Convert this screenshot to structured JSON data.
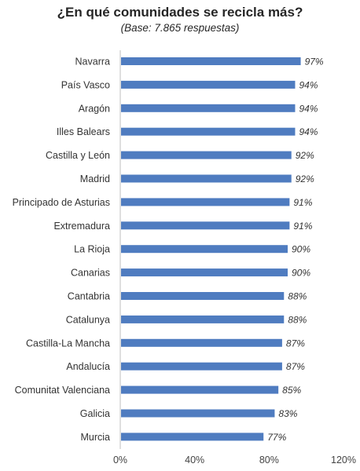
{
  "chart_data": {
    "type": "bar",
    "orientation": "horizontal",
    "title": "¿En qué comunidades se recicla más?",
    "subtitle": "(Base: 7.865 respuestas)",
    "categories": [
      "Navarra",
      "País Vasco",
      "Aragón",
      "Illes Balears",
      "Castilla y León",
      "Madrid",
      "Principado de Asturias",
      "Extremadura",
      "La Rioja",
      "Canarias",
      "Cantabria",
      "Catalunya",
      "Castilla-La Mancha",
      "Andalucía",
      "Comunitat Valenciana",
      "Galicia",
      "Murcia"
    ],
    "values": [
      97,
      94,
      94,
      94,
      92,
      92,
      91,
      91,
      90,
      90,
      88,
      88,
      87,
      87,
      85,
      83,
      77
    ],
    "value_labels": [
      "97%",
      "94%",
      "94%",
      "94%",
      "92%",
      "92%",
      "91%",
      "91%",
      "90%",
      "90%",
      "88%",
      "88%",
      "87%",
      "87%",
      "85%",
      "83%",
      "77%"
    ],
    "xlim": [
      0,
      120
    ],
    "xticks": [
      0,
      40,
      80,
      120
    ],
    "xtick_labels": [
      "0%",
      "40%",
      "80%",
      "120%"
    ],
    "bar_color": "#4f7cc0",
    "grid": false
  }
}
